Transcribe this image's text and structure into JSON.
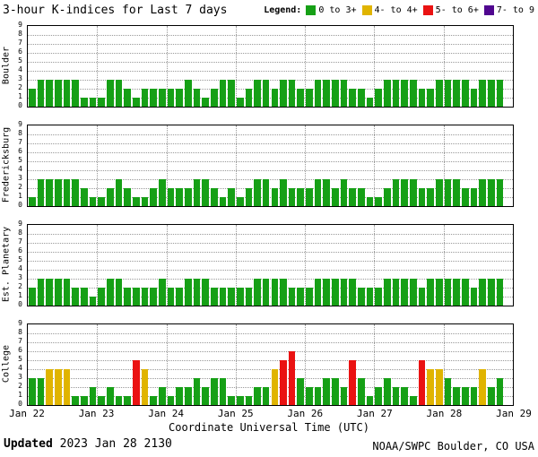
{
  "legend": {
    "label": "Legend:",
    "items": [
      {
        "label": "0 to 3+",
        "color": "#16a016"
      },
      {
        "label": "4- to 4+",
        "color": "#e0b400"
      },
      {
        "label": "5- to 6+",
        "color": "#ea1212"
      },
      {
        "label": "7- to 9",
        "color": "#50068f"
      }
    ]
  },
  "footer": {
    "updated_label": "Updated",
    "updated_value": "2023 Jan 28 2130",
    "credit": "NOAA/SWPC Boulder, CO USA"
  },
  "chart_data": {
    "type": "bar",
    "title": "3-hour K-indices for Last 7 days",
    "xlabel": "Coordinate Universal Time (UTC)",
    "ylim": [
      0,
      9
    ],
    "y_ticks": [
      0,
      1,
      2,
      3,
      4,
      5,
      6,
      7,
      8,
      9
    ],
    "grid": true,
    "days": 7,
    "bars_per_day": 8,
    "x_tick_labels": [
      "Jan 22",
      "Jan 23",
      "Jan 24",
      "Jan 25",
      "Jan 26",
      "Jan 27",
      "Jan 28",
      "Jan 29"
    ],
    "colors": {
      "low": "#16a016",
      "moderate": "#e0b400",
      "high": "#ea1212",
      "severe": "#50068f"
    },
    "color_rules": {
      "low": "0-3",
      "moderate": "4",
      "high": "5-6",
      "severe": "7-9"
    },
    "series": [
      {
        "name": "Boulder",
        "values": [
          2,
          3,
          3,
          3,
          3,
          3,
          1,
          1,
          1,
          3,
          3,
          2,
          1,
          2,
          2,
          2,
          2,
          2,
          3,
          2,
          1,
          2,
          3,
          3,
          1,
          2,
          3,
          3,
          2,
          3,
          3,
          2,
          2,
          3,
          3,
          3,
          3,
          2,
          2,
          1,
          2,
          3,
          3,
          3,
          3,
          2,
          2,
          3,
          3,
          3,
          3,
          2,
          3,
          3,
          3
        ]
      },
      {
        "name": "Fredericksburg",
        "values": [
          1,
          3,
          3,
          3,
          3,
          3,
          2,
          1,
          1,
          2,
          3,
          2,
          1,
          1,
          2,
          3,
          2,
          2,
          2,
          3,
          3,
          2,
          1,
          2,
          1,
          2,
          3,
          3,
          2,
          3,
          2,
          2,
          2,
          3,
          3,
          2,
          3,
          2,
          2,
          1,
          1,
          2,
          3,
          3,
          3,
          2,
          2,
          3,
          3,
          3,
          2,
          2,
          3,
          3,
          3
        ]
      },
      {
        "name": "Est. Planetary",
        "values": [
          2,
          3,
          3,
          3,
          3,
          2,
          2,
          1,
          2,
          3,
          3,
          2,
          2,
          2,
          2,
          3,
          2,
          2,
          3,
          3,
          3,
          2,
          2,
          2,
          2,
          2,
          3,
          3,
          3,
          3,
          2,
          2,
          2,
          3,
          3,
          3,
          3,
          3,
          2,
          2,
          2,
          3,
          3,
          3,
          3,
          2,
          3,
          3,
          3,
          3,
          3,
          2,
          3,
          3,
          3
        ]
      },
      {
        "name": "College",
        "values": [
          3,
          3,
          4,
          4,
          4,
          1,
          1,
          2,
          1,
          2,
          1,
          1,
          5,
          4,
          1,
          2,
          1,
          2,
          2,
          3,
          2,
          3,
          3,
          1,
          1,
          1,
          2,
          2,
          4,
          5,
          6,
          3,
          2,
          2,
          3,
          3,
          2,
          5,
          3,
          1,
          2,
          3,
          2,
          2,
          1,
          5,
          4,
          4,
          3,
          2,
          2,
          2,
          4,
          2,
          3
        ]
      }
    ]
  }
}
